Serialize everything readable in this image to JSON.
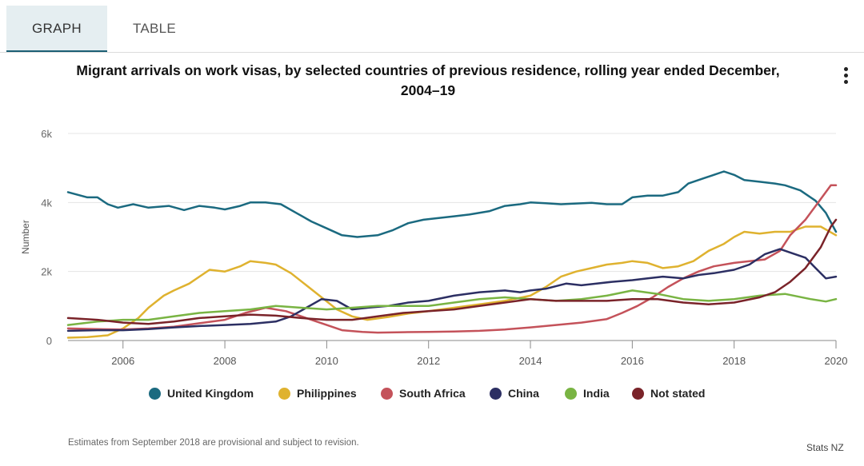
{
  "tabs": [
    {
      "label": "GRAPH",
      "active": true
    },
    {
      "label": "TABLE",
      "active": false
    }
  ],
  "menu_icon": "more-vertical-icon",
  "footer": {
    "note": "Estimates from September 2018 are provisional and subject to revision.",
    "credit": "Stats NZ"
  },
  "chart_data": {
    "type": "line",
    "title_line1": "Migrant arrivals on work visas, by selected countries of previous residence, rolling year ended December,",
    "title_line2": "2004–19",
    "xlabel": "",
    "ylabel": "Number",
    "xlim": [
      2004.92,
      2020.0
    ],
    "ylim": [
      0,
      6000
    ],
    "x_ticks": [
      2006,
      2008,
      2010,
      2012,
      2014,
      2016,
      2018,
      2020
    ],
    "x_tick_labels": [
      "2006",
      "2008",
      "2010",
      "2012",
      "2014",
      "2016",
      "2018",
      "2020"
    ],
    "y_ticks": [
      0,
      2000,
      4000,
      6000
    ],
    "y_tick_labels": [
      "0",
      "2k",
      "4k",
      "6k"
    ],
    "grid": "horizontal",
    "legend_position": "bottom",
    "series": [
      {
        "name": "United Kingdom",
        "color": "#1b6a80",
        "points": [
          [
            2004.92,
            4300
          ],
          [
            2005.3,
            4150
          ],
          [
            2005.5,
            4150
          ],
          [
            2005.7,
            3950
          ],
          [
            2005.9,
            3850
          ],
          [
            2006.2,
            3950
          ],
          [
            2006.5,
            3850
          ],
          [
            2006.9,
            3900
          ],
          [
            2007.2,
            3780
          ],
          [
            2007.5,
            3900
          ],
          [
            2007.8,
            3850
          ],
          [
            2008.0,
            3800
          ],
          [
            2008.3,
            3900
          ],
          [
            2008.5,
            4000
          ],
          [
            2008.8,
            4000
          ],
          [
            2009.1,
            3950
          ],
          [
            2009.4,
            3700
          ],
          [
            2009.7,
            3450
          ],
          [
            2010.0,
            3250
          ],
          [
            2010.3,
            3050
          ],
          [
            2010.6,
            3000
          ],
          [
            2011.0,
            3050
          ],
          [
            2011.3,
            3200
          ],
          [
            2011.6,
            3400
          ],
          [
            2011.9,
            3500
          ],
          [
            2012.2,
            3550
          ],
          [
            2012.5,
            3600
          ],
          [
            2012.8,
            3650
          ],
          [
            2013.2,
            3750
          ],
          [
            2013.5,
            3900
          ],
          [
            2013.8,
            3950
          ],
          [
            2014.0,
            4000
          ],
          [
            2014.3,
            3980
          ],
          [
            2014.6,
            3950
          ],
          [
            2014.9,
            3970
          ],
          [
            2015.2,
            3990
          ],
          [
            2015.5,
            3950
          ],
          [
            2015.8,
            3950
          ],
          [
            2016.0,
            4150
          ],
          [
            2016.3,
            4200
          ],
          [
            2016.6,
            4200
          ],
          [
            2016.9,
            4300
          ],
          [
            2017.1,
            4550
          ],
          [
            2017.4,
            4700
          ],
          [
            2017.6,
            4800
          ],
          [
            2017.8,
            4900
          ],
          [
            2018.0,
            4800
          ],
          [
            2018.2,
            4650
          ],
          [
            2018.5,
            4600
          ],
          [
            2018.8,
            4550
          ],
          [
            2019.0,
            4500
          ],
          [
            2019.3,
            4350
          ],
          [
            2019.6,
            4050
          ],
          [
            2019.8,
            3700
          ],
          [
            2020.0,
            3150
          ]
        ]
      },
      {
        "name": "Philippines",
        "color": "#dfb22f",
        "points": [
          [
            2004.92,
            80
          ],
          [
            2005.3,
            100
          ],
          [
            2005.7,
            150
          ],
          [
            2006.0,
            350
          ],
          [
            2006.3,
            650
          ],
          [
            2006.5,
            950
          ],
          [
            2006.8,
            1300
          ],
          [
            2007.0,
            1450
          ],
          [
            2007.3,
            1650
          ],
          [
            2007.5,
            1850
          ],
          [
            2007.7,
            2050
          ],
          [
            2008.0,
            2000
          ],
          [
            2008.3,
            2150
          ],
          [
            2008.5,
            2300
          ],
          [
            2008.8,
            2250
          ],
          [
            2009.0,
            2200
          ],
          [
            2009.3,
            1950
          ],
          [
            2009.6,
            1600
          ],
          [
            2009.9,
            1250
          ],
          [
            2010.2,
            900
          ],
          [
            2010.5,
            700
          ],
          [
            2010.8,
            600
          ],
          [
            2011.2,
            680
          ],
          [
            2011.6,
            780
          ],
          [
            2012.0,
            850
          ],
          [
            2012.5,
            950
          ],
          [
            2013.0,
            1050
          ],
          [
            2013.5,
            1150
          ],
          [
            2014.0,
            1300
          ],
          [
            2014.3,
            1550
          ],
          [
            2014.6,
            1850
          ],
          [
            2014.9,
            2000
          ],
          [
            2015.2,
            2100
          ],
          [
            2015.5,
            2200
          ],
          [
            2015.8,
            2250
          ],
          [
            2016.0,
            2300
          ],
          [
            2016.3,
            2250
          ],
          [
            2016.6,
            2100
          ],
          [
            2016.9,
            2150
          ],
          [
            2017.2,
            2300
          ],
          [
            2017.5,
            2600
          ],
          [
            2017.8,
            2800
          ],
          [
            2018.0,
            3000
          ],
          [
            2018.2,
            3150
          ],
          [
            2018.5,
            3100
          ],
          [
            2018.8,
            3150
          ],
          [
            2019.1,
            3150
          ],
          [
            2019.4,
            3300
          ],
          [
            2019.7,
            3300
          ],
          [
            2020.0,
            3050
          ]
        ]
      },
      {
        "name": "South Africa",
        "color": "#c4525a",
        "points": [
          [
            2004.92,
            350
          ],
          [
            2005.5,
            330
          ],
          [
            2006.0,
            320
          ],
          [
            2006.5,
            350
          ],
          [
            2007.0,
            400
          ],
          [
            2007.5,
            500
          ],
          [
            2008.0,
            600
          ],
          [
            2008.4,
            800
          ],
          [
            2008.8,
            950
          ],
          [
            2009.2,
            850
          ],
          [
            2009.6,
            650
          ],
          [
            2010.0,
            450
          ],
          [
            2010.3,
            300
          ],
          [
            2010.7,
            250
          ],
          [
            2011.0,
            230
          ],
          [
            2011.5,
            240
          ],
          [
            2012.0,
            250
          ],
          [
            2012.5,
            260
          ],
          [
            2013.0,
            280
          ],
          [
            2013.5,
            320
          ],
          [
            2014.0,
            380
          ],
          [
            2014.5,
            450
          ],
          [
            2015.0,
            520
          ],
          [
            2015.5,
            620
          ],
          [
            2015.8,
            800
          ],
          [
            2016.1,
            1000
          ],
          [
            2016.4,
            1250
          ],
          [
            2016.7,
            1550
          ],
          [
            2017.0,
            1800
          ],
          [
            2017.3,
            2000
          ],
          [
            2017.6,
            2150
          ],
          [
            2018.0,
            2250
          ],
          [
            2018.3,
            2300
          ],
          [
            2018.6,
            2350
          ],
          [
            2018.9,
            2600
          ],
          [
            2019.1,
            3050
          ],
          [
            2019.4,
            3500
          ],
          [
            2019.7,
            4100
          ],
          [
            2019.9,
            4500
          ],
          [
            2020.0,
            4500
          ]
        ]
      },
      {
        "name": "China",
        "color": "#2c2f63",
        "points": [
          [
            2004.92,
            280
          ],
          [
            2005.5,
            300
          ],
          [
            2006.0,
            300
          ],
          [
            2006.5,
            330
          ],
          [
            2007.0,
            380
          ],
          [
            2007.5,
            420
          ],
          [
            2008.0,
            450
          ],
          [
            2008.5,
            480
          ],
          [
            2009.0,
            550
          ],
          [
            2009.3,
            700
          ],
          [
            2009.6,
            950
          ],
          [
            2009.9,
            1200
          ],
          [
            2010.2,
            1150
          ],
          [
            2010.5,
            900
          ],
          [
            2010.8,
            950
          ],
          [
            2011.2,
            1000
          ],
          [
            2011.6,
            1100
          ],
          [
            2012.0,
            1150
          ],
          [
            2012.5,
            1300
          ],
          [
            2013.0,
            1400
          ],
          [
            2013.5,
            1450
          ],
          [
            2013.8,
            1400
          ],
          [
            2014.0,
            1450
          ],
          [
            2014.3,
            1500
          ],
          [
            2014.7,
            1650
          ],
          [
            2015.0,
            1600
          ],
          [
            2015.3,
            1650
          ],
          [
            2015.6,
            1700
          ],
          [
            2016.0,
            1750
          ],
          [
            2016.3,
            1800
          ],
          [
            2016.6,
            1850
          ],
          [
            2017.0,
            1800
          ],
          [
            2017.3,
            1900
          ],
          [
            2017.6,
            1950
          ],
          [
            2018.0,
            2050
          ],
          [
            2018.3,
            2200
          ],
          [
            2018.6,
            2500
          ],
          [
            2018.9,
            2650
          ],
          [
            2019.1,
            2550
          ],
          [
            2019.4,
            2400
          ],
          [
            2019.6,
            2100
          ],
          [
            2019.8,
            1800
          ],
          [
            2020.0,
            1850
          ]
        ]
      },
      {
        "name": "India",
        "color": "#79b443",
        "points": [
          [
            2004.92,
            450
          ],
          [
            2005.5,
            550
          ],
          [
            2006.0,
            600
          ],
          [
            2006.5,
            600
          ],
          [
            2007.0,
            700
          ],
          [
            2007.5,
            800
          ],
          [
            2008.0,
            850
          ],
          [
            2008.5,
            900
          ],
          [
            2009.0,
            1000
          ],
          [
            2009.5,
            950
          ],
          [
            2010.0,
            900
          ],
          [
            2010.5,
            950
          ],
          [
            2011.0,
            1000
          ],
          [
            2011.5,
            1000
          ],
          [
            2012.0,
            1000
          ],
          [
            2012.5,
            1100
          ],
          [
            2013.0,
            1200
          ],
          [
            2013.5,
            1250
          ],
          [
            2014.0,
            1200
          ],
          [
            2014.5,
            1150
          ],
          [
            2015.0,
            1200
          ],
          [
            2015.5,
            1300
          ],
          [
            2016.0,
            1450
          ],
          [
            2016.5,
            1350
          ],
          [
            2017.0,
            1200
          ],
          [
            2017.5,
            1150
          ],
          [
            2018.0,
            1200
          ],
          [
            2018.5,
            1300
          ],
          [
            2019.0,
            1350
          ],
          [
            2019.5,
            1200
          ],
          [
            2019.8,
            1130
          ],
          [
            2020.0,
            1200
          ]
        ]
      },
      {
        "name": "Not stated",
        "color": "#7a2329",
        "points": [
          [
            2004.92,
            650
          ],
          [
            2005.5,
            600
          ],
          [
            2006.0,
            520
          ],
          [
            2006.5,
            480
          ],
          [
            2007.0,
            550
          ],
          [
            2007.5,
            650
          ],
          [
            2008.0,
            700
          ],
          [
            2008.5,
            750
          ],
          [
            2009.0,
            720
          ],
          [
            2009.5,
            650
          ],
          [
            2010.0,
            600
          ],
          [
            2010.5,
            600
          ],
          [
            2011.0,
            700
          ],
          [
            2011.5,
            800
          ],
          [
            2012.0,
            850
          ],
          [
            2012.5,
            900
          ],
          [
            2013.0,
            1000
          ],
          [
            2013.5,
            1100
          ],
          [
            2014.0,
            1200
          ],
          [
            2014.5,
            1150
          ],
          [
            2015.0,
            1150
          ],
          [
            2015.5,
            1150
          ],
          [
            2016.0,
            1200
          ],
          [
            2016.5,
            1200
          ],
          [
            2017.0,
            1100
          ],
          [
            2017.5,
            1050
          ],
          [
            2018.0,
            1100
          ],
          [
            2018.5,
            1250
          ],
          [
            2018.8,
            1400
          ],
          [
            2019.1,
            1700
          ],
          [
            2019.4,
            2100
          ],
          [
            2019.7,
            2700
          ],
          [
            2019.9,
            3300
          ],
          [
            2020.0,
            3500
          ]
        ]
      }
    ]
  }
}
